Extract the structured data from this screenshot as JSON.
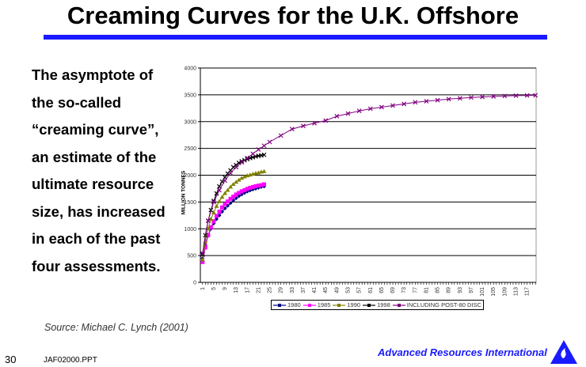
{
  "title": "Creaming Curves for the U.K. Offshore",
  "body_lines": [
    "The asymptote of",
    "the so-called",
    "“creaming curve”,",
    "an estimate of the",
    "ultimate resource",
    "size, has increased",
    "in each of the past",
    "four assessments."
  ],
  "source": "Source:  Michael C. Lynch (2001)",
  "page_number": "30",
  "file_name": "JAF02000.PPT",
  "company": "Advanced Resources International",
  "chart_data": {
    "type": "line",
    "title": "",
    "xlabel": "",
    "ylabel": "MILLION TONNES",
    "ylim": [
      0,
      4000
    ],
    "yticks": [
      0,
      500,
      1000,
      1500,
      2000,
      2500,
      3000,
      3500,
      4000
    ],
    "xlim": [
      1,
      120
    ],
    "xticks": [
      1,
      5,
      9,
      13,
      17,
      21,
      25,
      29,
      33,
      37,
      41,
      45,
      49,
      53,
      57,
      61,
      65,
      69,
      73,
      77,
      81,
      85,
      89,
      93,
      97,
      101,
      105,
      109,
      113,
      117
    ],
    "grid": "horizontal",
    "legend_position": "bottom",
    "series": [
      {
        "name": "1980",
        "color": "#000080",
        "marker": "diamond",
        "x": [
          1,
          2,
          3,
          4,
          5,
          6,
          7,
          8,
          9,
          10,
          11,
          12,
          13,
          14,
          15,
          16,
          17,
          18,
          19,
          20,
          21,
          22,
          23
        ],
        "y": [
          450,
          700,
          870,
          1000,
          1100,
          1180,
          1250,
          1320,
          1380,
          1430,
          1480,
          1530,
          1570,
          1610,
          1640,
          1670,
          1695,
          1715,
          1735,
          1750,
          1765,
          1780,
          1790
        ]
      },
      {
        "name": "1985",
        "color": "#ff00ff",
        "marker": "square",
        "x": [
          1,
          2,
          3,
          4,
          5,
          6,
          7,
          8,
          9,
          10,
          11,
          12,
          13,
          14,
          15,
          16,
          17,
          18,
          19,
          20,
          21,
          22,
          23
        ],
        "y": [
          380,
          650,
          880,
          1030,
          1140,
          1240,
          1320,
          1400,
          1460,
          1510,
          1560,
          1600,
          1640,
          1670,
          1700,
          1720,
          1745,
          1765,
          1780,
          1795,
          1805,
          1815,
          1830
        ]
      },
      {
        "name": "1990",
        "color": "#808000",
        "marker": "triangle",
        "x": [
          1,
          2,
          3,
          4,
          5,
          6,
          7,
          8,
          9,
          10,
          11,
          12,
          13,
          14,
          15,
          16,
          17,
          18,
          19,
          20,
          21,
          22,
          23
        ],
        "y": [
          420,
          760,
          1000,
          1180,
          1300,
          1420,
          1510,
          1590,
          1660,
          1720,
          1780,
          1830,
          1870,
          1910,
          1945,
          1970,
          1990,
          2005,
          2020,
          2035,
          2045,
          2060,
          2070
        ]
      },
      {
        "name": "1998",
        "color": "#000000",
        "marker": "x",
        "x": [
          1,
          2,
          3,
          4,
          5,
          6,
          7,
          8,
          9,
          10,
          11,
          12,
          13,
          14,
          15,
          16,
          17,
          18,
          19,
          20,
          21,
          22,
          23
        ],
        "y": [
          520,
          880,
          1150,
          1350,
          1520,
          1660,
          1790,
          1880,
          1960,
          2030,
          2090,
          2150,
          2190,
          2230,
          2260,
          2280,
          2300,
          2320,
          2335,
          2350,
          2360,
          2370,
          2380
        ]
      },
      {
        "name": "INCLUDING POST-80 DISC",
        "color": "#800080",
        "marker": "x",
        "x": [
          1,
          3,
          5,
          7,
          9,
          11,
          13,
          15,
          17,
          19,
          21,
          23,
          25,
          29,
          33,
          37,
          41,
          45,
          49,
          53,
          57,
          61,
          65,
          69,
          73,
          77,
          81,
          85,
          89,
          93,
          97,
          101,
          105,
          109,
          113,
          117,
          120
        ],
        "y": [
          540,
          1150,
          1500,
          1720,
          1900,
          2040,
          2150,
          2240,
          2320,
          2400,
          2480,
          2550,
          2620,
          2740,
          2860,
          2920,
          2970,
          3020,
          3100,
          3150,
          3200,
          3240,
          3270,
          3300,
          3330,
          3360,
          3380,
          3400,
          3420,
          3435,
          3450,
          3460,
          3470,
          3478,
          3485,
          3488,
          3490
        ]
      }
    ]
  }
}
